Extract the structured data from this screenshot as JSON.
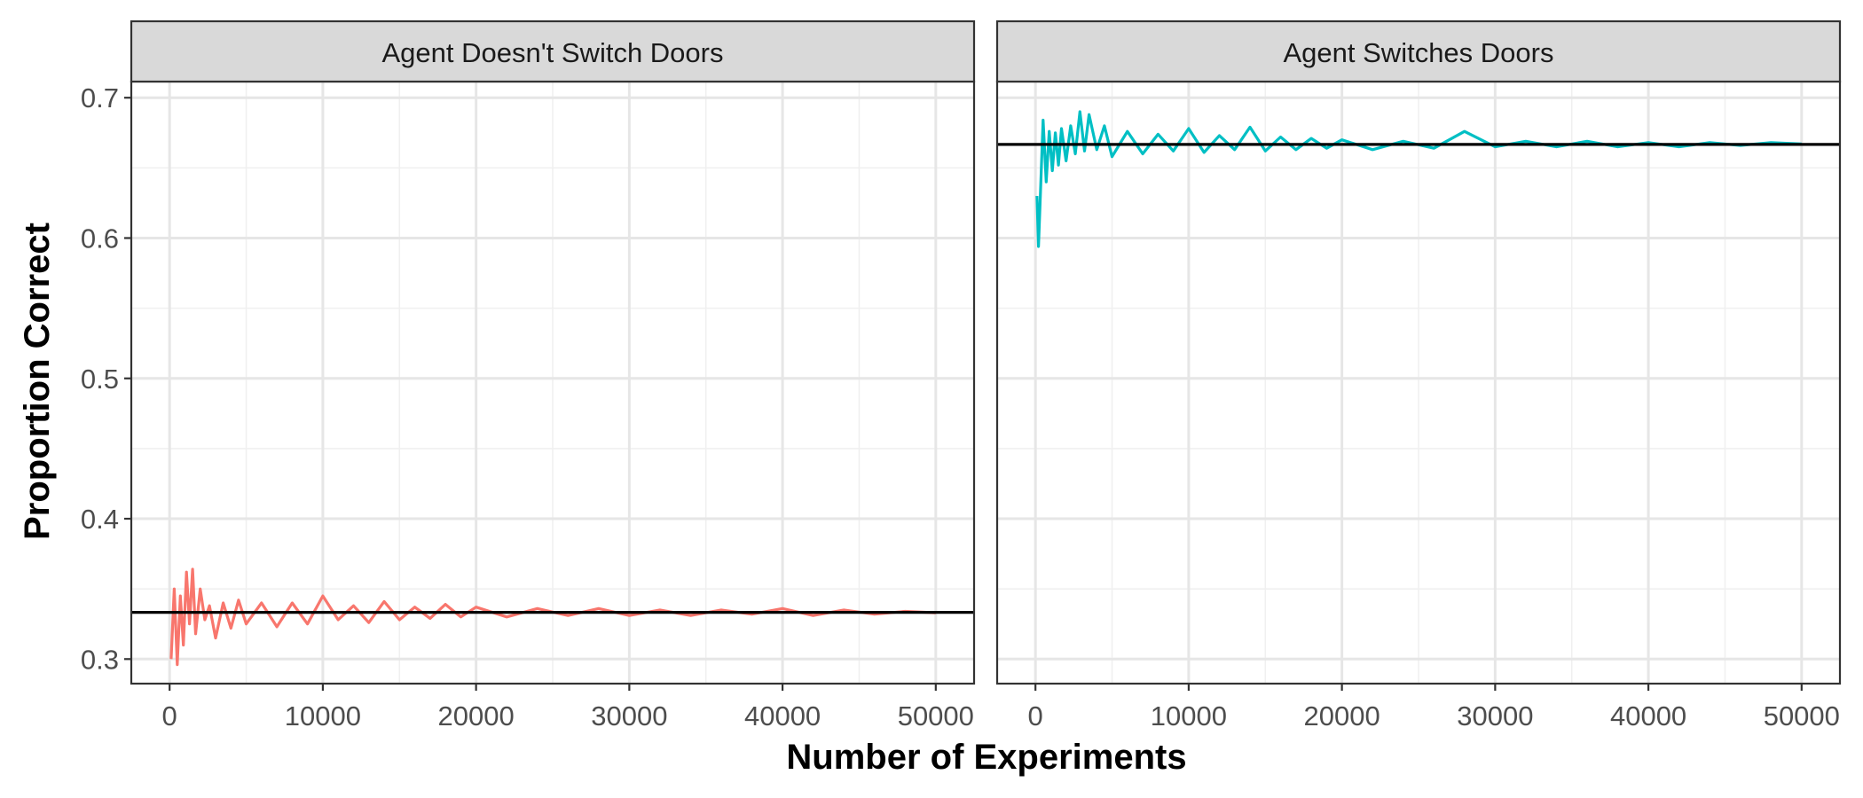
{
  "chart_data": {
    "type": "line",
    "xlabel": "Number of Experiments",
    "ylabel": "Proportion Correct",
    "xlim": [
      -2500,
      52500
    ],
    "ylim": [
      0.2825,
      0.7115
    ],
    "x_ticks": [
      0,
      10000,
      20000,
      30000,
      40000,
      50000
    ],
    "x_tick_labels": [
      "0",
      "10000",
      "20000",
      "30000",
      "40000",
      "50000"
    ],
    "y_ticks": [
      0.3,
      0.4,
      0.5,
      0.6,
      0.7
    ],
    "y_tick_labels": [
      "0.3",
      "0.4",
      "0.5",
      "0.6",
      "0.7"
    ],
    "grid": true,
    "legend": "none",
    "panels": [
      {
        "title": "Agent Doesn't Switch Doors",
        "color": "#F8766D",
        "reference_line": 0.3333,
        "series": {
          "x": [
            100,
            300,
            500,
            700,
            900,
            1100,
            1300,
            1500,
            1700,
            2000,
            2300,
            2600,
            3000,
            3500,
            4000,
            4500,
            5000,
            6000,
            7000,
            8000,
            9000,
            10000,
            11000,
            12000,
            13000,
            14000,
            15000,
            16000,
            17000,
            18000,
            19000,
            20000,
            22000,
            24000,
            26000,
            28000,
            30000,
            32000,
            34000,
            36000,
            38000,
            40000,
            42000,
            44000,
            46000,
            48000,
            50000
          ],
          "y": [
            0.3,
            0.35,
            0.296,
            0.345,
            0.31,
            0.362,
            0.325,
            0.364,
            0.318,
            0.35,
            0.328,
            0.338,
            0.315,
            0.34,
            0.322,
            0.342,
            0.325,
            0.34,
            0.323,
            0.34,
            0.325,
            0.345,
            0.328,
            0.338,
            0.326,
            0.341,
            0.328,
            0.337,
            0.329,
            0.339,
            0.33,
            0.337,
            0.33,
            0.336,
            0.331,
            0.336,
            0.331,
            0.335,
            0.331,
            0.335,
            0.332,
            0.336,
            0.331,
            0.335,
            0.332,
            0.334,
            0.333
          ]
        }
      },
      {
        "title": "Agent Switches Doors",
        "color": "#00BFC4",
        "reference_line": 0.6667,
        "series": {
          "x": [
            100,
            200,
            300,
            500,
            700,
            900,
            1100,
            1300,
            1500,
            1700,
            2000,
            2300,
            2600,
            2900,
            3200,
            3500,
            4000,
            4500,
            5000,
            6000,
            7000,
            8000,
            9000,
            10000,
            11000,
            12000,
            13000,
            14000,
            15000,
            16000,
            17000,
            18000,
            19000,
            20000,
            22000,
            24000,
            26000,
            28000,
            30000,
            32000,
            34000,
            36000,
            38000,
            40000,
            42000,
            44000,
            46000,
            48000,
            50000
          ],
          "y": [
            0.63,
            0.594,
            0.625,
            0.684,
            0.64,
            0.676,
            0.648,
            0.675,
            0.652,
            0.678,
            0.655,
            0.68,
            0.66,
            0.69,
            0.662,
            0.688,
            0.663,
            0.68,
            0.658,
            0.676,
            0.66,
            0.674,
            0.662,
            0.678,
            0.661,
            0.673,
            0.663,
            0.679,
            0.662,
            0.672,
            0.663,
            0.671,
            0.664,
            0.67,
            0.663,
            0.669,
            0.664,
            0.676,
            0.665,
            0.669,
            0.665,
            0.669,
            0.665,
            0.668,
            0.665,
            0.668,
            0.666,
            0.668,
            0.667
          ]
        }
      }
    ]
  }
}
